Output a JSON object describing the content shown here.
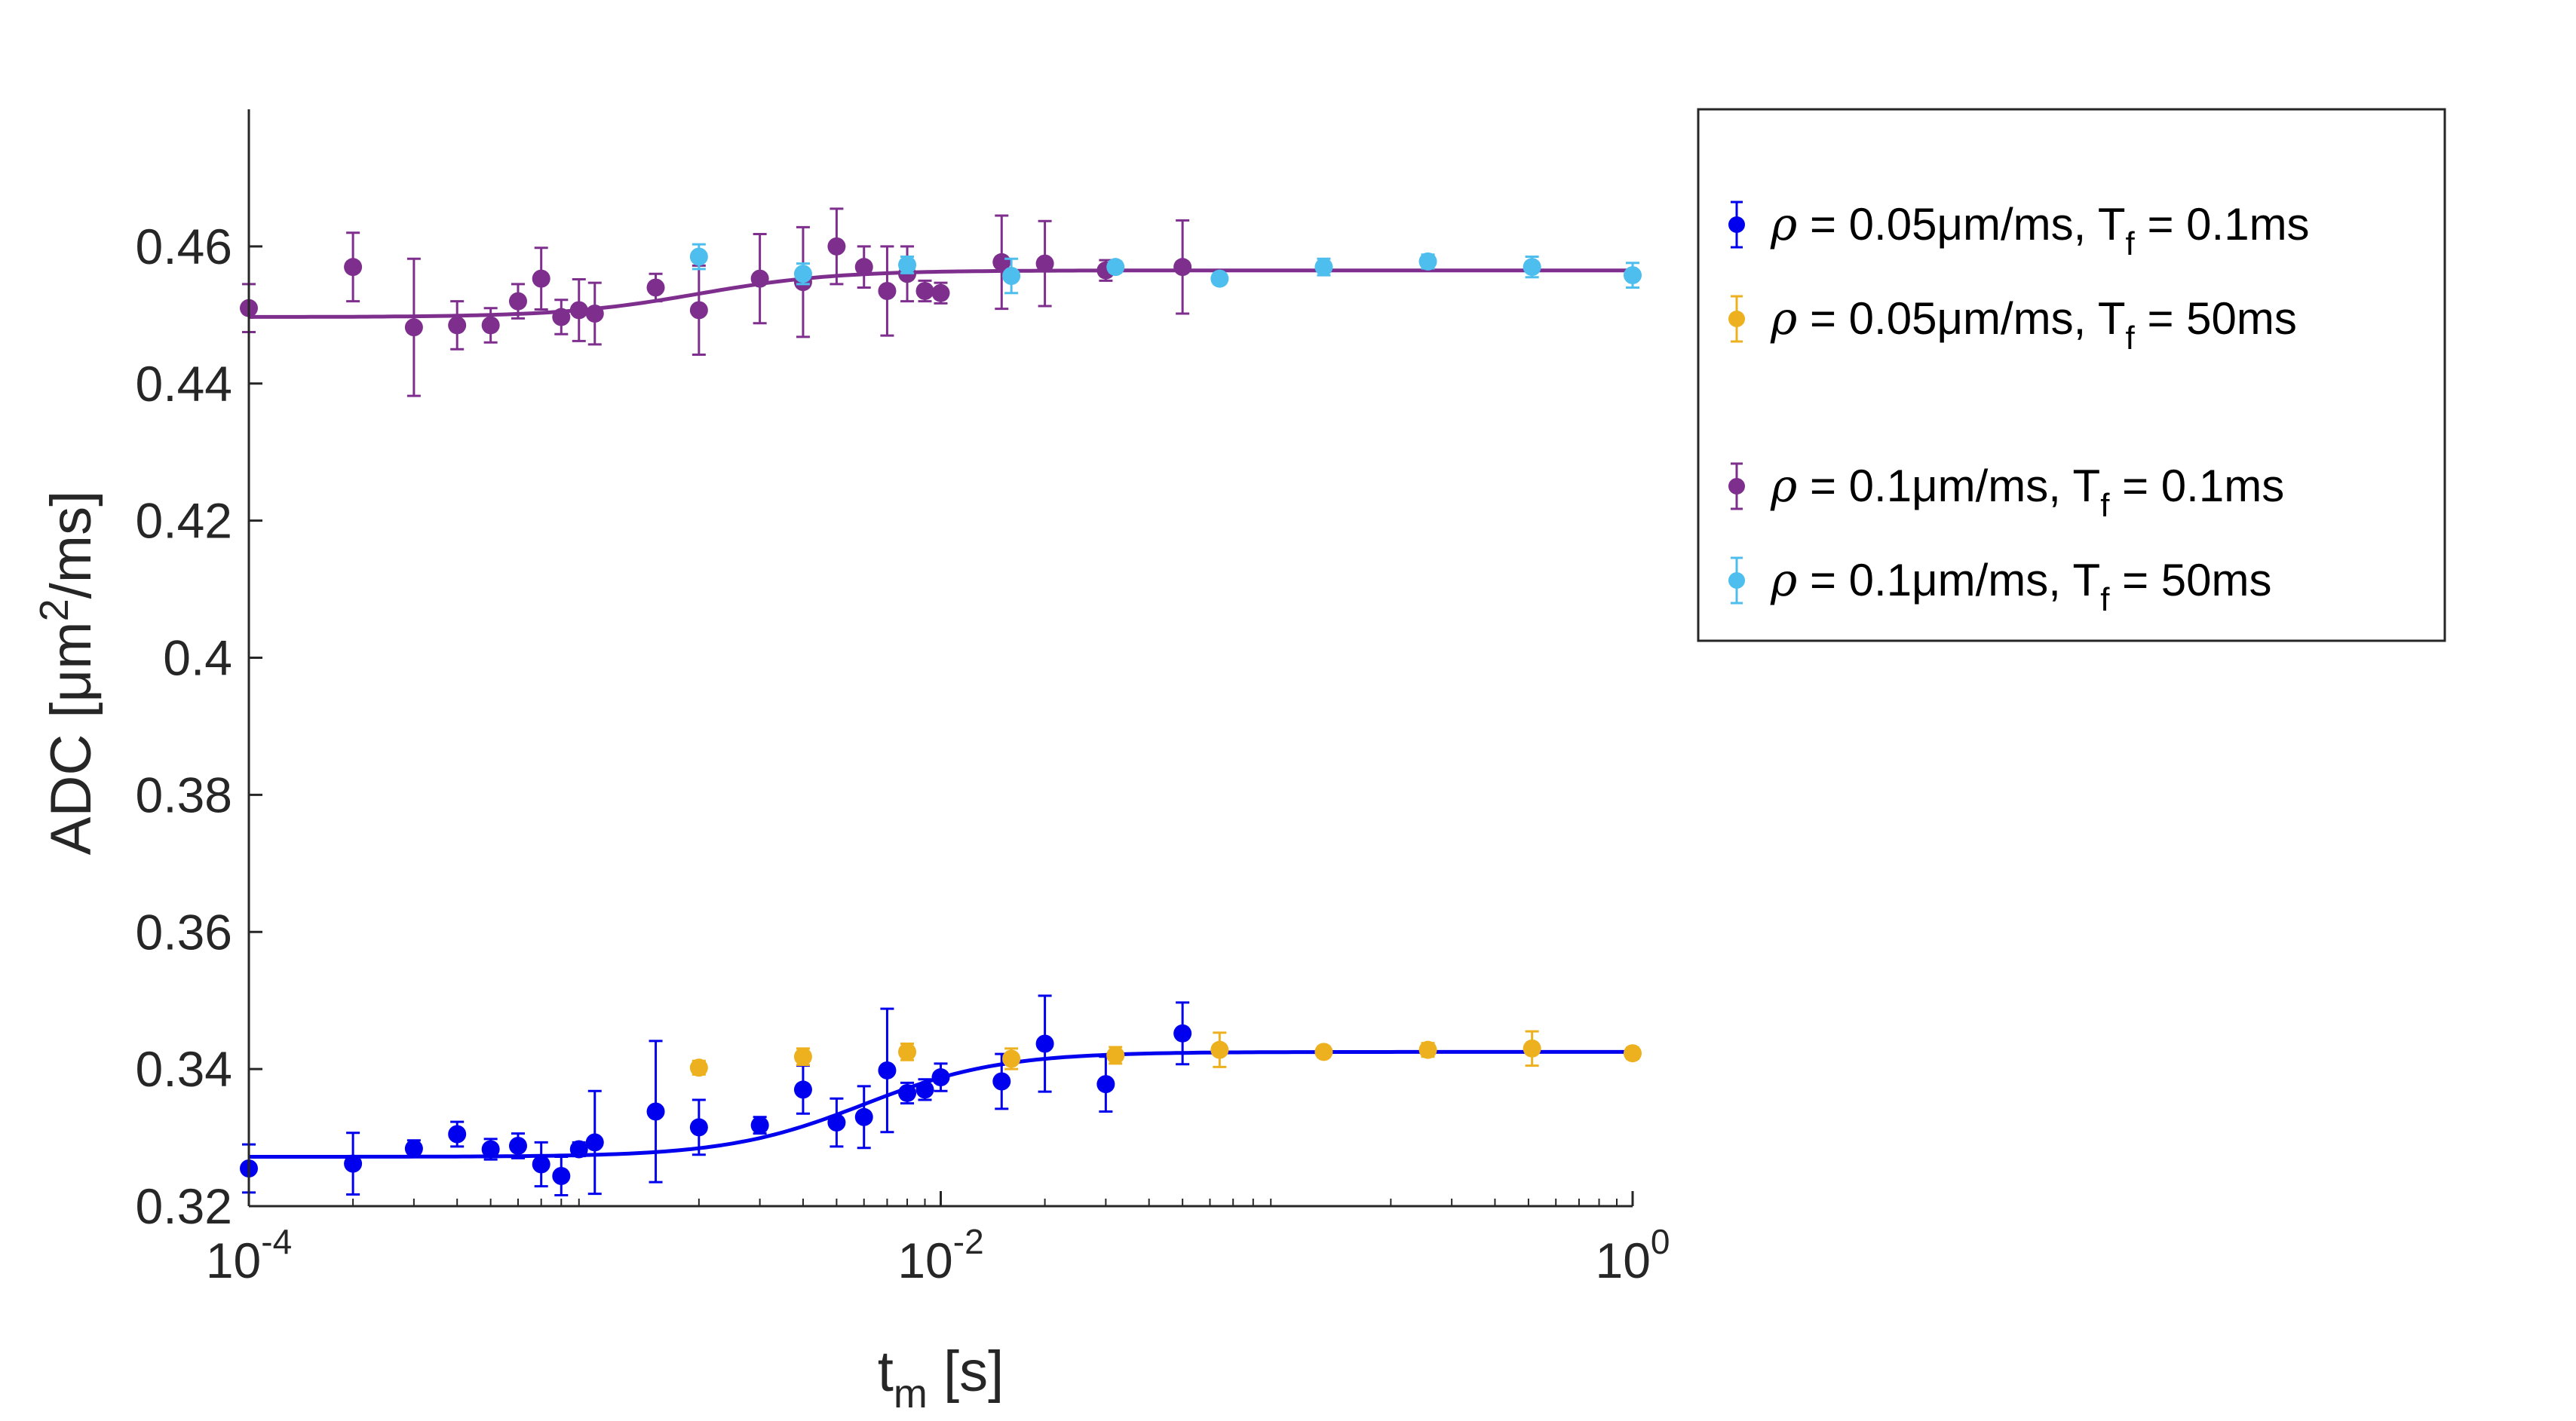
{
  "chart_data": {
    "type": "scatter",
    "title": "",
    "xscale": "log",
    "xlim": [
      0.0001,
      1
    ],
    "ylim": [
      0.32,
      0.48
    ],
    "xticks": [
      {
        "value": 0.0001,
        "base": "10",
        "exp": "-4"
      },
      {
        "value": 0.01,
        "base": "10",
        "exp": "-2"
      },
      {
        "value": 1,
        "base": "10",
        "exp": "0"
      }
    ],
    "yticks": [
      {
        "value": 0.32,
        "label": "0.32"
      },
      {
        "value": 0.34,
        "label": "0.34"
      },
      {
        "value": 0.36,
        "label": "0.36"
      },
      {
        "value": 0.38,
        "label": "0.38"
      },
      {
        "value": 0.4,
        "label": "0.4"
      },
      {
        "value": 0.42,
        "label": "0.42"
      },
      {
        "value": 0.44,
        "label": "0.44"
      },
      {
        "value": 0.46,
        "label": "0.46"
      }
    ],
    "xlabel": {
      "main": "t",
      "sub": "m",
      "unit": " [s]"
    },
    "ylabel": {
      "prefix": "ADC [μm",
      "sup": "2",
      "suffix": "/ms]"
    },
    "legend": {
      "position": "right",
      "entries": [
        {
          "series": 0,
          "rho": "ρ",
          "text": " = 0.05μm/ms, T",
          "sub": "f",
          "tail": " = 0.1ms"
        },
        {
          "series": 1,
          "rho": "ρ",
          "text": " = 0.05μm/ms, T",
          "sub": "f",
          "tail": " = 50ms"
        },
        {
          "series": 2,
          "rho": "ρ",
          "text": "  = 0.1μm/ms, T",
          "sub": "f",
          "tail": " = 0.1ms"
        },
        {
          "series": 3,
          "rho": "ρ",
          "text": "  = 0.1μm/ms, T",
          "sub": "f",
          "tail": " = 50ms"
        }
      ]
    },
    "series": [
      {
        "name": "ρ = 0.05μm/ms, Tf = 0.1ms",
        "color": "#0000ee",
        "points": [
          {
            "x": 0.0001,
            "y": 0.3255,
            "err": 0.0035
          },
          {
            "x": 0.0002,
            "y": 0.3262,
            "err": 0.0045
          },
          {
            "x": 0.0003,
            "y": 0.3284,
            "err": 0.0012
          },
          {
            "x": 0.0004,
            "y": 0.3305,
            "err": 0.0018
          },
          {
            "x": 0.0005,
            "y": 0.3283,
            "err": 0.0015
          },
          {
            "x": 0.0006,
            "y": 0.3288,
            "err": 0.0018
          },
          {
            "x": 0.0007,
            "y": 0.3261,
            "err": 0.0032
          },
          {
            "x": 0.0008,
            "y": 0.3244,
            "err": 0.0028
          },
          {
            "x": 0.0009,
            "y": 0.3283,
            "err": 0.001
          },
          {
            "x": 0.001,
            "y": 0.3293,
            "err": 0.0075
          },
          {
            "x": 0.0015,
            "y": 0.3338,
            "err": 0.0103
          },
          {
            "x": 0.002,
            "y": 0.3315,
            "err": 0.004
          },
          {
            "x": 0.003,
            "y": 0.3318,
            "err": 0.0012
          },
          {
            "x": 0.004,
            "y": 0.337,
            "err": 0.0035
          },
          {
            "x": 0.005,
            "y": 0.3322,
            "err": 0.0035
          },
          {
            "x": 0.006,
            "y": 0.333,
            "err": 0.0045
          },
          {
            "x": 0.007,
            "y": 0.3398,
            "err": 0.009
          },
          {
            "x": 0.008,
            "y": 0.3365,
            "err": 0.0015
          },
          {
            "x": 0.009,
            "y": 0.337,
            "err": 0.0015
          },
          {
            "x": 0.01,
            "y": 0.3388,
            "err": 0.002
          },
          {
            "x": 0.015,
            "y": 0.3382,
            "err": 0.004
          },
          {
            "x": 0.02,
            "y": 0.3437,
            "err": 0.007
          },
          {
            "x": 0.03,
            "y": 0.3378,
            "err": 0.004
          },
          {
            "x": 0.05,
            "y": 0.3452,
            "err": 0.0045
          }
        ],
        "fit": {
          "low": 0.3272,
          "high": 0.3425,
          "center": 0.006,
          "width": 2.2
        }
      },
      {
        "name": "ρ = 0.05μm/ms, Tf = 50ms",
        "color": "#edb120",
        "points": [
          {
            "x": 0.002,
            "y": 0.3402,
            "err": 0.001
          },
          {
            "x": 0.004,
            "y": 0.3418,
            "err": 0.0012
          },
          {
            "x": 0.008,
            "y": 0.3425,
            "err": 0.0012
          },
          {
            "x": 0.016,
            "y": 0.3415,
            "err": 0.0015
          },
          {
            "x": 0.032,
            "y": 0.342,
            "err": 0.0012
          },
          {
            "x": 0.064,
            "y": 0.3428,
            "err": 0.0025
          },
          {
            "x": 0.128,
            "y": 0.3425,
            "err": 0.0008
          },
          {
            "x": 0.256,
            "y": 0.3428,
            "err": 0.001
          },
          {
            "x": 0.512,
            "y": 0.343,
            "err": 0.0025
          },
          {
            "x": 1,
            "y": 0.3423,
            "err": 0.0008
          }
        ]
      },
      {
        "name": "ρ = 0.1μm/ms, Tf = 0.1ms",
        "color": "#7e2f8e",
        "points": [
          {
            "x": 0.0001,
            "y": 0.451,
            "err": 0.0035
          },
          {
            "x": 0.0002,
            "y": 0.457,
            "err": 0.005
          },
          {
            "x": 0.0003,
            "y": 0.4482,
            "err": 0.01
          },
          {
            "x": 0.0004,
            "y": 0.4485,
            "err": 0.0035
          },
          {
            "x": 0.0005,
            "y": 0.4485,
            "err": 0.0025
          },
          {
            "x": 0.0006,
            "y": 0.452,
            "err": 0.0025
          },
          {
            "x": 0.0007,
            "y": 0.4553,
            "err": 0.0045
          },
          {
            "x": 0.0008,
            "y": 0.4497,
            "err": 0.0025
          },
          {
            "x": 0.0009,
            "y": 0.4507,
            "err": 0.0045
          },
          {
            "x": 0.001,
            "y": 0.4502,
            "err": 0.0045
          },
          {
            "x": 0.0015,
            "y": 0.454,
            "err": 0.002
          },
          {
            "x": 0.002,
            "y": 0.4507,
            "err": 0.0065
          },
          {
            "x": 0.003,
            "y": 0.4553,
            "err": 0.0065
          },
          {
            "x": 0.004,
            "y": 0.4548,
            "err": 0.008
          },
          {
            "x": 0.005,
            "y": 0.46,
            "err": 0.0055
          },
          {
            "x": 0.006,
            "y": 0.457,
            "err": 0.003
          },
          {
            "x": 0.007,
            "y": 0.4535,
            "err": 0.0065
          },
          {
            "x": 0.008,
            "y": 0.456,
            "err": 0.004
          },
          {
            "x": 0.009,
            "y": 0.4535,
            "err": 0.0015
          },
          {
            "x": 0.01,
            "y": 0.4532,
            "err": 0.0015
          },
          {
            "x": 0.015,
            "y": 0.4577,
            "err": 0.0068
          },
          {
            "x": 0.02,
            "y": 0.4575,
            "err": 0.0062
          },
          {
            "x": 0.03,
            "y": 0.4565,
            "err": 0.0015
          },
          {
            "x": 0.05,
            "y": 0.457,
            "err": 0.0068
          }
        ],
        "fit": {
          "low": 0.4497,
          "high": 0.4565,
          "center": 0.002,
          "width": 2.2
        }
      },
      {
        "name": "ρ = 0.1μm/ms, Tf = 50ms",
        "color": "#4dbeee",
        "points": [
          {
            "x": 0.002,
            "y": 0.4585,
            "err": 0.0018
          },
          {
            "x": 0.004,
            "y": 0.456,
            "err": 0.0015
          },
          {
            "x": 0.008,
            "y": 0.4573,
            "err": 0.0012
          },
          {
            "x": 0.016,
            "y": 0.4557,
            "err": 0.0025
          },
          {
            "x": 0.032,
            "y": 0.457,
            "err": 0.0008
          },
          {
            "x": 0.064,
            "y": 0.4553,
            "err": 0.0008
          },
          {
            "x": 0.128,
            "y": 0.457,
            "err": 0.0012
          },
          {
            "x": 0.256,
            "y": 0.4578,
            "err": 0.001
          },
          {
            "x": 0.512,
            "y": 0.457,
            "err": 0.0015
          },
          {
            "x": 1,
            "y": 0.4558,
            "err": 0.0018
          }
        ]
      }
    ]
  }
}
